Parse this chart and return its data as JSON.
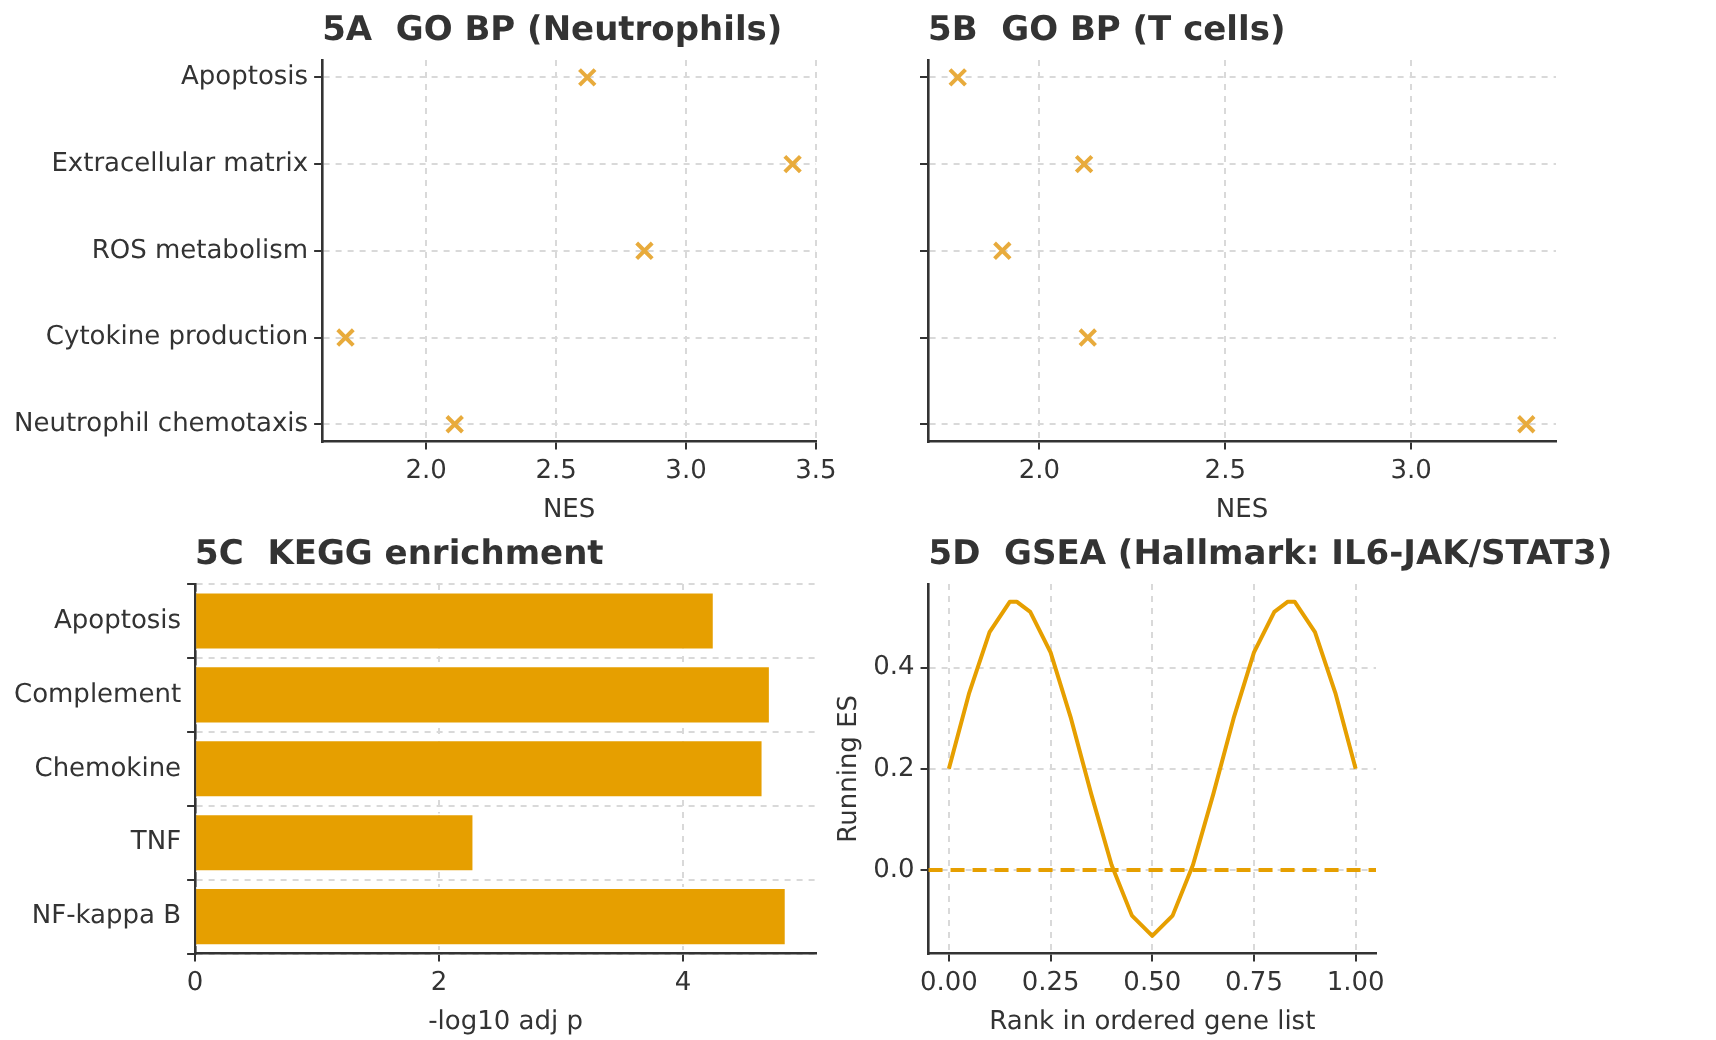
{
  "chart_data": [
    {
      "type": "scatter",
      "orientation": "horizontal",
      "title": "5A  GO BP (Neutrophils)",
      "xlabel": "NES",
      "categories": [
        "Apoptosis",
        "Extracellular matrix",
        "ROS metabolism",
        "Cytokine production",
        "Neutrophil chemotaxis"
      ],
      "values": [
        2.62,
        3.41,
        2.84,
        1.69,
        2.11
      ],
      "color": "#e8ab3c",
      "marker": "cross",
      "xlim": [
        1.6,
        3.5
      ],
      "xticks": [
        {
          "value": 2,
          "label": "2.0"
        },
        2.5,
        {
          "value": 3,
          "label": "3.0"
        },
        3.5
      ],
      "grid": true
    },
    {
      "type": "scatter",
      "orientation": "horizontal",
      "title": "5B  GO BP (T cells)",
      "xlabel": "NES",
      "categories": [
        null,
        null,
        null,
        null,
        null
      ],
      "values": [
        1.78,
        2.12,
        1.9,
        2.13,
        3.31
      ],
      "color": "#e8ab3c",
      "marker": "cross",
      "xlim": [
        1.7,
        3.39
      ],
      "xticks": [
        {
          "value": 2,
          "label": "2.0"
        },
        2.5,
        {
          "value": 3,
          "label": "3.0"
        }
      ],
      "grid": true,
      "tick_labels": "x"
    },
    {
      "type": "bar",
      "orientation": "horizontal",
      "title": "5C  KEGG enrichment",
      "xlabel": "-log10 adj p",
      "categories": [
        "Apoptosis",
        "Complement",
        "Chemokine",
        "TNF",
        "NF-kappa B"
      ],
      "values": [
        4.26,
        4.72,
        4.66,
        2.29,
        4.85
      ],
      "color": "#e69f00",
      "xlim": [
        0,
        5.09
      ],
      "xticks": [
        0,
        2,
        4
      ],
      "grid": true
    },
    {
      "type": "line",
      "title": "5D  GSEA (Hallmark: IL6-JAK/STAT3)",
      "xlabel": "Rank in ordered gene list",
      "ylabel": "Running ES",
      "x": [
        0,
        0.05,
        0.1,
        0.15,
        0.1667,
        0.2,
        0.25,
        0.3,
        0.35,
        0.4,
        0.45,
        0.5,
        0.55,
        0.6,
        0.65,
        0.7,
        0.75,
        0.8,
        0.8333,
        0.85,
        0.9,
        0.95,
        1
      ],
      "values": [
        0.2,
        0.35,
        0.47,
        0.53,
        0.53,
        0.51,
        0.43,
        0.3,
        0.15,
        0.01,
        -0.09,
        -0.13,
        -0.09,
        0.01,
        0.15,
        0.3,
        0.43,
        0.51,
        0.53,
        0.53,
        0.47,
        0.35,
        0.2
      ],
      "color": "#e69f00",
      "marker": "none",
      "line_style": "solid",
      "xlim": [
        -0.05,
        1.05
      ],
      "xticks": [
        {
          "value": 0,
          "label": "0.00"
        },
        0.25,
        {
          "value": 0.5,
          "label": "0.50"
        },
        0.75,
        {
          "value": 1,
          "label": "1.00"
        }
      ],
      "ylim": [
        -0.165,
        0.565
      ],
      "yticks": [
        {
          "value": 0,
          "label": "0.0"
        },
        0.2,
        0.4
      ],
      "grid": true,
      "ref_lines": [
        {
          "axis": "y",
          "value": 0,
          "color": "#e69f00",
          "line_style": "dashed"
        }
      ]
    }
  ]
}
